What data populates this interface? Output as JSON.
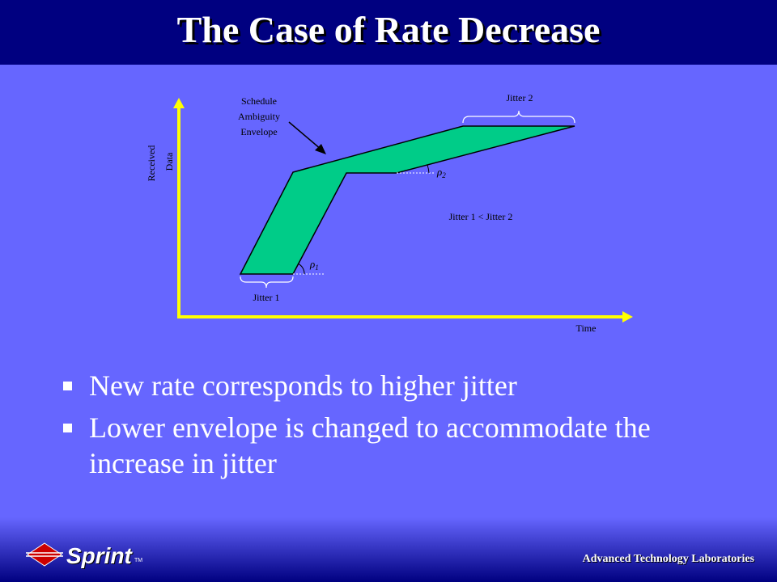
{
  "title": "The Case of Rate Decrease",
  "diagram": {
    "y_axis_label_line1": "Received",
    "y_axis_label_line2": "Data",
    "x_axis_label": "Time",
    "callout_line1": "Schedule",
    "callout_line2": "Ambiguity",
    "callout_line3": "Envelope",
    "jitter1_label": "Jitter 1",
    "jitter2_label": "Jitter 2",
    "comparison_label": "Jitter 1 < Jitter 2",
    "rate1_symbol": "ρ",
    "rate1_subscript": "1",
    "rate2_symbol": "ρ",
    "rate2_subscript": "2",
    "colors": {
      "axis": "#ffff00",
      "envelope_fill": "#00cc88",
      "background": "#6666ff"
    }
  },
  "bullets": [
    "New rate corresponds to higher jitter",
    "Lower envelope is changed to accommodate the increase in jitter"
  ],
  "footer": {
    "logo_text": "Sprint",
    "logo_tm": "TM",
    "lab_text": "Advanced Technology Laboratories"
  }
}
